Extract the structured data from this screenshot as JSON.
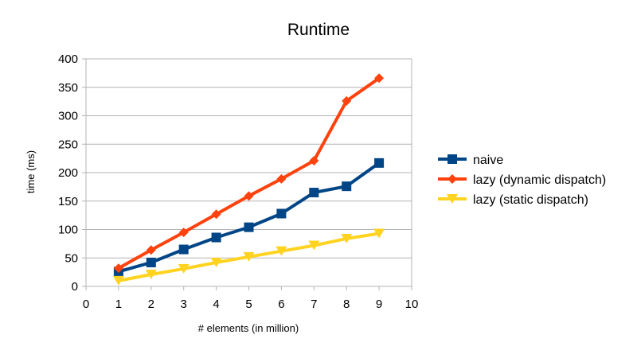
{
  "chart_data": {
    "type": "line",
    "title": "Runtime",
    "xlabel": "# elements (in million)",
    "ylabel": "time (ms)",
    "xlim": [
      0,
      10
    ],
    "ylim": [
      0,
      400
    ],
    "x_ticks": [
      0,
      1,
      2,
      3,
      4,
      5,
      6,
      7,
      8,
      9,
      10
    ],
    "y_ticks": [
      0,
      50,
      100,
      150,
      200,
      250,
      300,
      350,
      400
    ],
    "grid": "horizontal",
    "legend_position": "right",
    "x": [
      1,
      2,
      3,
      4,
      5,
      6,
      7,
      8,
      9
    ],
    "series": [
      {
        "name": "naive",
        "color": "#004586",
        "marker": "square",
        "values": [
          26,
          42,
          65,
          86,
          104,
          128,
          165,
          176,
          217
        ]
      },
      {
        "name": "lazy (dynamic dispatch)",
        "color": "#ff420e",
        "marker": "diamond",
        "values": [
          32,
          64,
          95,
          127,
          159,
          189,
          221,
          326,
          366
        ]
      },
      {
        "name": "lazy (static dispatch)",
        "color": "#ffd320",
        "marker": "triangle-down",
        "values": [
          10,
          21,
          31,
          42,
          52,
          62,
          72,
          84,
          93
        ]
      }
    ]
  }
}
